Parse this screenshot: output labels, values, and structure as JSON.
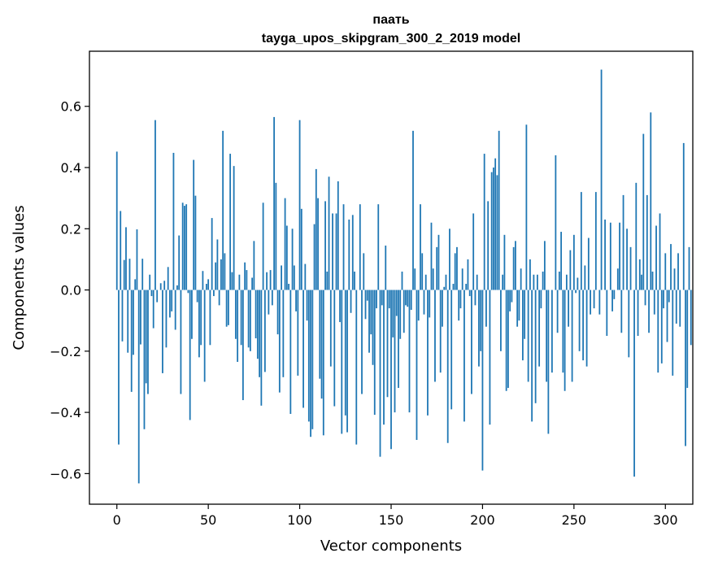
{
  "chart_data": {
    "type": "bar",
    "title": "паать",
    "subtitle": "tayga_upos_skipgram_300_2_2019 model",
    "xlabel": "Vector components",
    "ylabel": "Components values",
    "xlim": [
      -15,
      315
    ],
    "ylim": [
      -0.7,
      0.78
    ],
    "xticks": [
      0,
      50,
      100,
      150,
      200,
      250,
      300
    ],
    "yticks": [
      -0.6,
      -0.4,
      -0.2,
      0.0,
      0.2,
      0.4,
      0.6
    ],
    "ytick_labels": [
      "−0.6",
      "−0.4",
      "−0.2",
      "0.0",
      "0.2",
      "0.4",
      "0.6"
    ],
    "xtick_labels": [
      "0",
      "50",
      "100",
      "150",
      "200",
      "250",
      "300"
    ],
    "bar_color": "#1f77b4",
    "grid": false,
    "values": [
      0.452,
      -0.505,
      0.258,
      -0.168,
      0.098,
      0.205,
      -0.205,
      0.102,
      -0.333,
      -0.212,
      0.035,
      0.198,
      -0.632,
      -0.178,
      0.102,
      -0.455,
      -0.305,
      -0.34,
      0.05,
      -0.02,
      -0.125,
      0.555,
      -0.04,
      0.0,
      0.022,
      -0.272,
      0.03,
      -0.188,
      0.075,
      -0.09,
      -0.07,
      0.448,
      -0.13,
      0.015,
      0.178,
      -0.34,
      0.285,
      0.275,
      0.28,
      -0.01,
      -0.425,
      -0.16,
      0.425,
      0.308,
      -0.04,
      -0.22,
      -0.18,
      0.062,
      -0.3,
      0.02,
      0.035,
      -0.18,
      0.235,
      -0.02,
      0.09,
      0.165,
      -0.05,
      0.1,
      0.52,
      0.12,
      -0.12,
      -0.115,
      0.445,
      0.058,
      0.405,
      -0.16,
      -0.235,
      0.05,
      -0.18,
      -0.36,
      0.09,
      0.065,
      -0.188,
      -0.2,
      0.04,
      0.16,
      -0.158,
      -0.225,
      -0.285,
      -0.378,
      0.285,
      -0.268,
      0.058,
      -0.08,
      0.065,
      -0.05,
      0.565,
      0.35,
      -0.145,
      -0.335,
      0.08,
      -0.285,
      0.3,
      0.21,
      0.02,
      -0.405,
      0.2,
      0.08,
      -0.07,
      -0.28,
      0.555,
      0.265,
      -0.385,
      0.085,
      -0.1,
      -0.43,
      -0.48,
      -0.455,
      0.215,
      0.395,
      0.3,
      -0.29,
      -0.355,
      -0.475,
      0.29,
      0.06,
      0.37,
      -0.25,
      0.25,
      -0.38,
      0.25,
      0.355,
      -0.105,
      -0.47,
      0.28,
      -0.41,
      -0.465,
      0.23,
      -0.075,
      0.245,
      0.06,
      -0.505,
      0.0,
      0.28,
      -0.34,
      0.12,
      -0.095,
      -0.035,
      -0.205,
      -0.145,
      -0.245,
      -0.408,
      -0.06,
      0.28,
      -0.545,
      -0.05,
      -0.44,
      0.145,
      -0.35,
      -0.06,
      -0.52,
      -0.155,
      -0.4,
      -0.085,
      -0.32,
      -0.16,
      0.06,
      -0.14,
      -0.05,
      -0.055,
      -0.4,
      -0.065,
      0.52,
      0.07,
      -0.49,
      -0.1,
      0.28,
      0.12,
      -0.08,
      0.05,
      -0.41,
      -0.09,
      0.22,
      0.07,
      -0.3,
      0.14,
      0.18,
      -0.27,
      -0.12,
      0.01,
      0.05,
      -0.5,
      0.2,
      -0.39,
      0.02,
      0.12,
      0.14,
      -0.1,
      -0.06,
      0.07,
      -0.43,
      0.02,
      0.1,
      -0.02,
      -0.34,
      0.25,
      -0.05,
      0.05,
      -0.25,
      -0.2,
      -0.59,
      0.445,
      -0.12,
      0.29,
      -0.44,
      0.385,
      0.4,
      0.43,
      0.375,
      0.52,
      -0.2,
      0.05,
      0.18,
      -0.33,
      -0.32,
      -0.07,
      -0.04,
      0.14,
      0.16,
      -0.12,
      -0.1,
      0.07,
      -0.23,
      -0.16,
      0.54,
      -0.3,
      0.1,
      -0.43,
      0.05,
      -0.37,
      0.05,
      -0.25,
      -0.06,
      0.06,
      0.16,
      -0.3,
      -0.47,
      0.0,
      -0.27,
      0.0,
      0.44,
      -0.14,
      0.06,
      0.19,
      -0.27,
      -0.33,
      0.05,
      -0.12,
      0.13,
      -0.3,
      0.18,
      -0.01,
      0.04,
      -0.2,
      0.32,
      -0.23,
      0.08,
      -0.25,
      0.17,
      -0.08,
      0.0,
      -0.06,
      0.32,
      0.0,
      -0.08,
      0.72,
      0.0,
      0.23,
      -0.15,
      0.0,
      0.22,
      -0.07,
      -0.03,
      0.0,
      0.07,
      0.22,
      -0.14,
      0.31,
      0.0,
      0.2,
      -0.22,
      0.14,
      0.0,
      -0.61,
      0.35,
      -0.15,
      0.1,
      0.05,
      0.51,
      -0.05,
      0.31,
      -0.14,
      0.58,
      0.06,
      -0.08,
      0.21,
      -0.27,
      0.25,
      -0.24,
      -0.06,
      0.12,
      -0.17,
      -0.04,
      0.15,
      -0.28,
      0.07,
      -0.11,
      0.12,
      -0.12,
      0.0,
      0.48,
      -0.51,
      -0.32,
      0.14,
      -0.18
    ]
  }
}
